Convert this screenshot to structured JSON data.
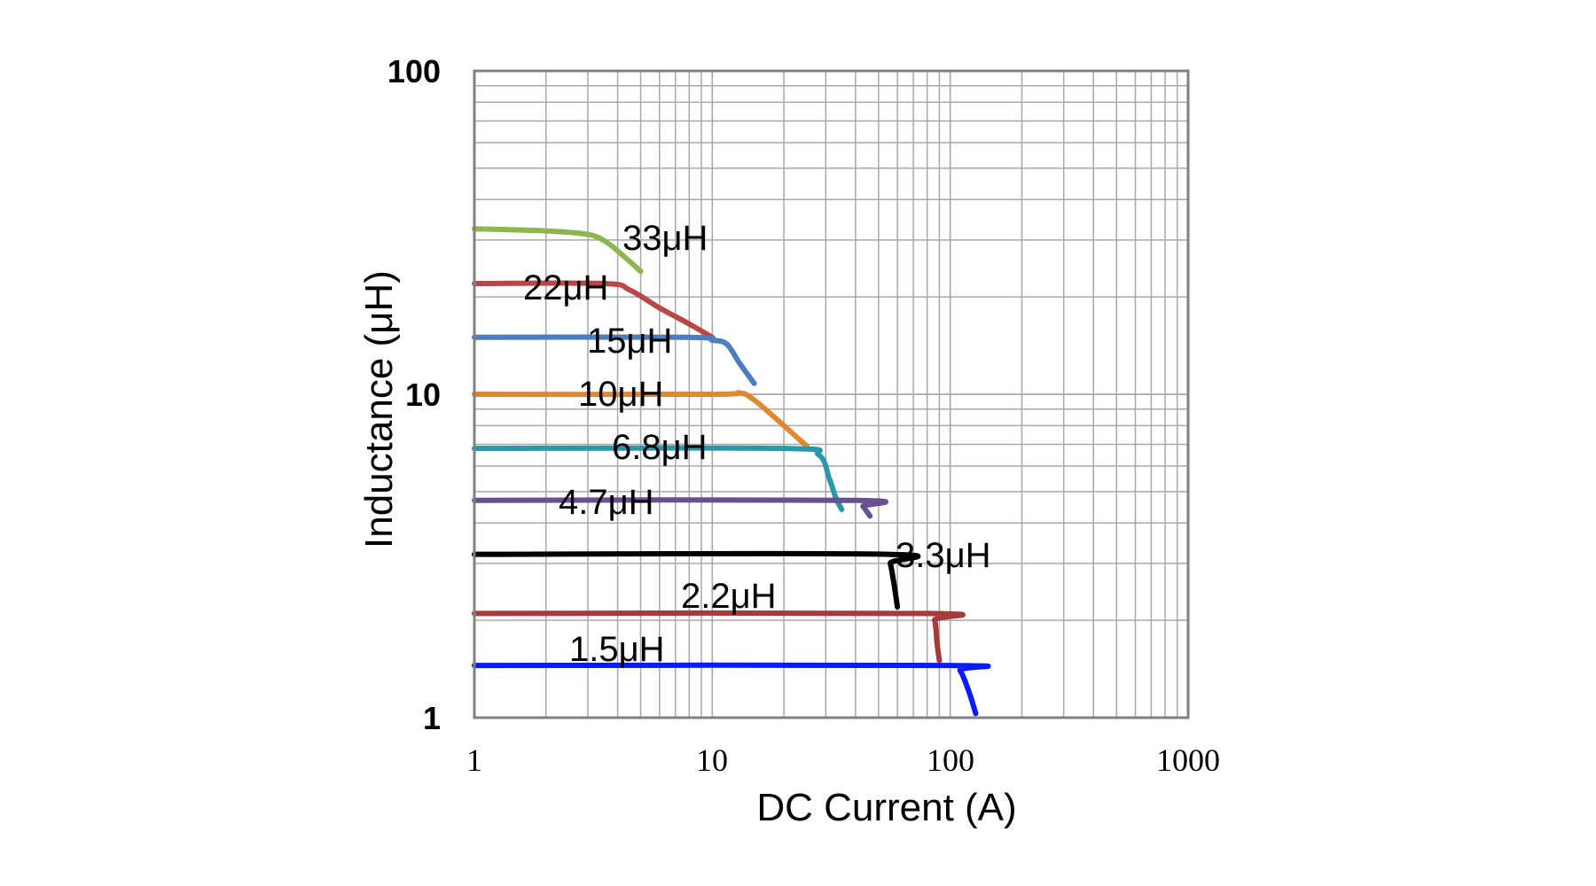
{
  "chart_data": {
    "type": "line",
    "xscale": "log",
    "yscale": "log",
    "xlabel": "DC Current (A)",
    "ylabel": "Inductance (μH)",
    "xlim": [
      1,
      1000
    ],
    "ylim": [
      1,
      100
    ],
    "xticks": [
      "1",
      "10",
      "100",
      "1000"
    ],
    "yticks": [
      "1",
      "10",
      "100"
    ],
    "grid": true,
    "series": [
      {
        "name": "33μH",
        "color": "#8db650",
        "points": [
          [
            1,
            32.5
          ],
          [
            2,
            32.0
          ],
          [
            3,
            31.2
          ],
          [
            3.6,
            29.5
          ],
          [
            4.3,
            26.5
          ],
          [
            5,
            24
          ]
        ]
      },
      {
        "name": "22μH",
        "color": "#b84848",
        "points": [
          [
            1,
            22
          ],
          [
            3.5,
            22
          ],
          [
            4.5,
            21
          ],
          [
            6,
            18.5
          ],
          [
            8,
            16.5
          ],
          [
            10,
            15
          ]
        ]
      },
      {
        "name": "15μH",
        "color": "#4a7ebf",
        "points": [
          [
            1,
            15
          ],
          [
            8,
            15
          ],
          [
            10,
            14.7
          ],
          [
            11.5,
            14.3
          ],
          [
            13,
            12.5
          ],
          [
            15,
            10.8
          ]
        ]
      },
      {
        "name": "10μH",
        "color": "#e08830",
        "points": [
          [
            1,
            10
          ],
          [
            10,
            10
          ],
          [
            13,
            10.1
          ],
          [
            15,
            9.6
          ],
          [
            20,
            8.0
          ],
          [
            25,
            6.9
          ]
        ]
      },
      {
        "name": "6.8μH",
        "color": "#2c97a8",
        "points": [
          [
            1,
            6.8
          ],
          [
            20,
            6.8
          ],
          [
            28,
            6.5
          ],
          [
            31,
            5.5
          ],
          [
            33,
            4.8
          ],
          [
            35,
            4.4
          ]
        ]
      },
      {
        "name": "4.7μH",
        "color": "#6b4f93",
        "points": [
          [
            1,
            4.7
          ],
          [
            40,
            4.7
          ],
          [
            43,
            4.5
          ],
          [
            46,
            4.2
          ]
        ]
      },
      {
        "name": "3.3μH",
        "color": "#000000",
        "points": [
          [
            1,
            3.2
          ],
          [
            54,
            3.2
          ],
          [
            56,
            3.0
          ],
          [
            58,
            2.6
          ],
          [
            60,
            2.2
          ]
        ]
      },
      {
        "name": "2.2μH",
        "color": "#a73a3a",
        "points": [
          [
            1,
            2.1
          ],
          [
            80,
            2.1
          ],
          [
            86,
            2.0
          ],
          [
            88,
            1.7
          ],
          [
            90,
            1.5
          ]
        ]
      },
      {
        "name": "1.5μH",
        "color": "#0a1cff",
        "points": [
          [
            1,
            1.45
          ],
          [
            100,
            1.45
          ],
          [
            110,
            1.4
          ],
          [
            120,
            1.2
          ],
          [
            128,
            1.03
          ]
        ]
      }
    ]
  }
}
